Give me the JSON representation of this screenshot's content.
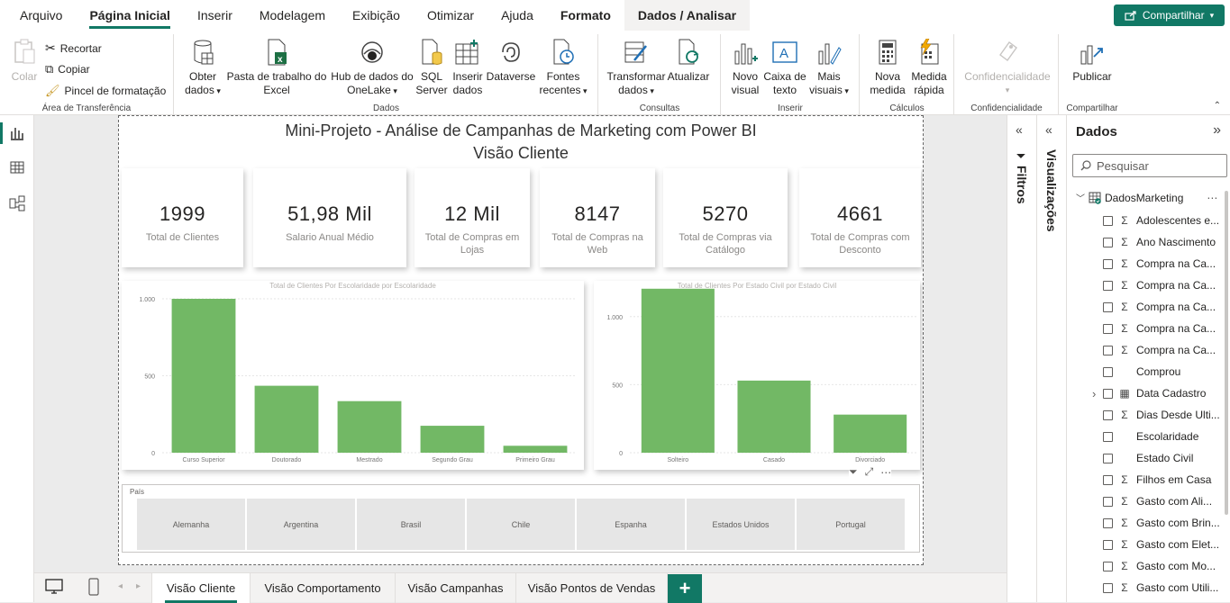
{
  "menu": {
    "tabs": [
      "Arquivo",
      "Página Inicial",
      "Inserir",
      "Modelagem",
      "Exibição",
      "Otimizar",
      "Ajuda",
      "Formato",
      "Dados / Analisar"
    ],
    "share_label": "Compartilhar"
  },
  "ribbon": {
    "clipboard": {
      "paste": "Colar",
      "cut": "Recortar",
      "copy": "Copiar",
      "format_painter": "Pincel de formatação",
      "group": "Área de Transferência"
    },
    "data": {
      "get_data": [
        "Obter",
        "dados"
      ],
      "excel": [
        "Pasta de trabalho do",
        "Excel"
      ],
      "onelake": [
        "Hub de dados do",
        "OneLake"
      ],
      "sql": [
        "SQL",
        "Server"
      ],
      "insert_data": [
        "Inserir",
        "dados"
      ],
      "dataverse": "Dataverse",
      "recent": [
        "Fontes",
        "recentes"
      ],
      "group": "Dados"
    },
    "queries": {
      "transform": [
        "Transformar",
        "dados"
      ],
      "refresh": "Atualizar",
      "group": "Consultas"
    },
    "insert": {
      "new_visual": [
        "Novo",
        "visual"
      ],
      "textbox": [
        "Caixa de",
        "texto"
      ],
      "more_visuals": [
        "Mais",
        "visuais"
      ],
      "group": "Inserir"
    },
    "calc": {
      "new_measure": [
        "Nova",
        "medida"
      ],
      "quick_measure": [
        "Medida",
        "rápida"
      ],
      "group": "Cálculos"
    },
    "sensitivity": {
      "label": "Confidencialidade",
      "group": "Confidencialidade"
    },
    "share": {
      "publish": "Publicar",
      "group": "Compartilhar"
    }
  },
  "report": {
    "title": "Mini-Projeto - Análise de Campanhas de Marketing com Power BI",
    "subtitle": "Visão Cliente",
    "cards": [
      {
        "value": "1999",
        "label": "Total de Clientes"
      },
      {
        "value": "51,98 Mil",
        "label": "Salario Anual Médio"
      },
      {
        "value": "12 Mil",
        "label": "Total de Compras em Lojas"
      },
      {
        "value": "8147",
        "label": "Total de Compras na Web"
      },
      {
        "value": "5270",
        "label": "Total de Compras via Catálogo"
      },
      {
        "value": "4661",
        "label": "Total de Compras com Desconto"
      }
    ],
    "slicer": {
      "label": "País",
      "items": [
        "Alemanha",
        "Argentina",
        "Brasil",
        "Chile",
        "Espanha",
        "Estados Unidos",
        "Portugal"
      ]
    }
  },
  "chart_data": [
    {
      "type": "bar",
      "title": "Total de Clientes Por Escolaridade por Escolaridade",
      "categories": [
        "Curso Superior",
        "Doutorado",
        "Mestrado",
        "Segundo Grau",
        "Primeiro Grau"
      ],
      "values": [
        1000,
        435,
        335,
        175,
        45
      ],
      "ylim": [
        0,
        1000
      ],
      "yticks": [
        0,
        500,
        1000
      ],
      "ytick_labels": [
        "0",
        "500",
        "1.000"
      ],
      "color": "#72b865"
    },
    {
      "type": "bar",
      "title": "Total de Clientes Por Estado Civil por Estado Civil",
      "categories": [
        "Solteiro",
        "Casado",
        "Divorciado"
      ],
      "values": [
        1205,
        530,
        280
      ],
      "ylim": [
        0,
        1250
      ],
      "yticks": [
        0,
        500,
        1000
      ],
      "ytick_labels": [
        "0",
        "500",
        "1.000"
      ],
      "color": "#72b865"
    }
  ],
  "panes": {
    "filters": "Filtros",
    "visualizations": "Visualizações",
    "data": {
      "title": "Dados",
      "search_placeholder": "Pesquisar",
      "table": "DadosMarketing",
      "fields": [
        {
          "name": "Adolescentes e...",
          "kind": "sum"
        },
        {
          "name": "Ano Nascimento",
          "kind": "sum"
        },
        {
          "name": "Compra na Ca...",
          "kind": "sum"
        },
        {
          "name": "Compra na Ca...",
          "kind": "sum"
        },
        {
          "name": "Compra na Ca...",
          "kind": "sum"
        },
        {
          "name": "Compra na Ca...",
          "kind": "sum"
        },
        {
          "name": "Compra na Ca...",
          "kind": "sum"
        },
        {
          "name": "Comprou",
          "kind": "text"
        },
        {
          "name": "Data Cadastro",
          "kind": "date"
        },
        {
          "name": "Dias Desde Ulti...",
          "kind": "sum"
        },
        {
          "name": "Escolaridade",
          "kind": "text"
        },
        {
          "name": "Estado Civil",
          "kind": "text"
        },
        {
          "name": "Filhos em Casa",
          "kind": "sum"
        },
        {
          "name": "Gasto com Ali...",
          "kind": "sum"
        },
        {
          "name": "Gasto com Brin...",
          "kind": "sum"
        },
        {
          "name": "Gasto com Elet...",
          "kind": "sum"
        },
        {
          "name": "Gasto com Mo...",
          "kind": "sum"
        },
        {
          "name": "Gasto com Utili...",
          "kind": "sum"
        }
      ]
    }
  },
  "pages": [
    "Visão Cliente",
    "Visão Comportamento",
    "Visão Campanhas",
    "Visão Pontos de Vendas"
  ],
  "add_page": "+"
}
